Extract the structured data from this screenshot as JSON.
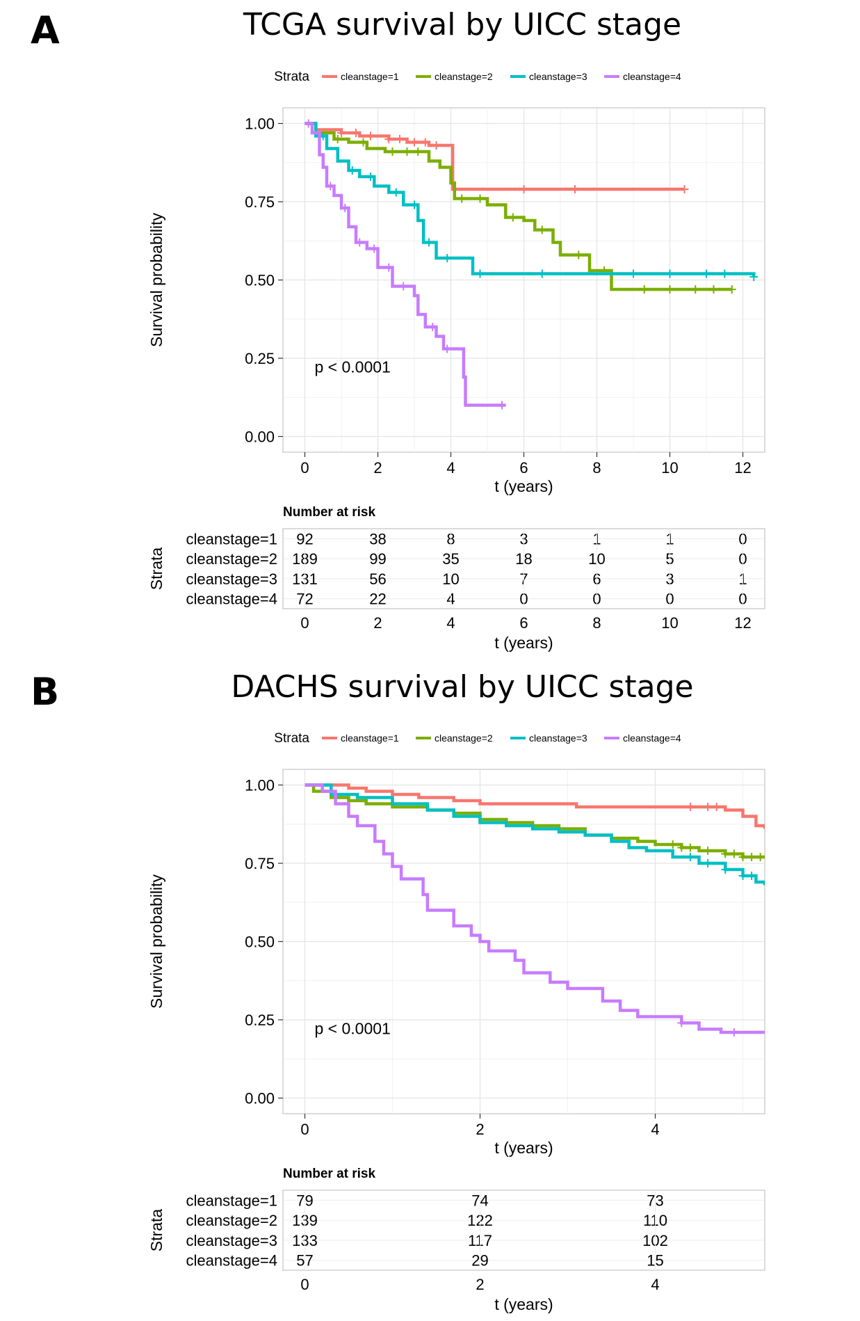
{
  "chart_data": [
    {
      "type": "line",
      "panel_label": "A",
      "title": "TCGA survival by UICC stage",
      "legend": {
        "title": "Strata",
        "placement": "top",
        "entries": [
          "cleanstage=1",
          "cleanstage=2",
          "cleanstage=3",
          "cleanstage=4"
        ]
      },
      "xlabel": "t (years)",
      "ylabel": "Survival probability",
      "xlim": [
        -0.6,
        12.6
      ],
      "ylim": [
        -0.05,
        1.05
      ],
      "xticks": [
        0,
        2,
        4,
        6,
        8,
        10,
        12
      ],
      "xtick_labels": [
        "0",
        "2",
        "4",
        "6",
        "8",
        "10",
        "12"
      ],
      "yticks": [
        0,
        0.25,
        0.5,
        0.75,
        1.0
      ],
      "ytick_labels": [
        "0.00",
        "0.25",
        "0.50",
        "0.75",
        "1.00"
      ],
      "grid": true,
      "annotation": "p < 0.0001",
      "series": [
        {
          "name": "cleanstage=1",
          "color": "#F8766D",
          "points": [
            [
              0,
              1.0
            ],
            [
              0.3,
              0.98
            ],
            [
              1.0,
              0.97
            ],
            [
              1.5,
              0.96
            ],
            [
              2.3,
              0.95
            ],
            [
              2.8,
              0.94
            ],
            [
              3.4,
              0.93
            ],
            [
              4.05,
              0.92
            ],
            [
              4.05,
              0.79
            ],
            [
              10.4,
              0.79
            ]
          ],
          "censor_times": [
            1.0,
            1.4,
            1.8,
            2.3,
            2.6,
            3.0,
            3.3,
            3.6,
            6.0,
            7.4,
            10.4
          ]
        },
        {
          "name": "cleanstage=2",
          "color": "#7CAE00",
          "points": [
            [
              0,
              1.0
            ],
            [
              0.3,
              0.97
            ],
            [
              0.8,
              0.95
            ],
            [
              1.2,
              0.94
            ],
            [
              1.7,
              0.92
            ],
            [
              2.2,
              0.91
            ],
            [
              3.2,
              0.91
            ],
            [
              3.4,
              0.88
            ],
            [
              3.7,
              0.86
            ],
            [
              4.0,
              0.81
            ],
            [
              4.1,
              0.76
            ],
            [
              5.0,
              0.74
            ],
            [
              5.5,
              0.7
            ],
            [
              6.0,
              0.69
            ],
            [
              6.3,
              0.66
            ],
            [
              6.8,
              0.62
            ],
            [
              7.0,
              0.58
            ],
            [
              7.8,
              0.53
            ],
            [
              8.4,
              0.47
            ],
            [
              11.7,
              0.47
            ]
          ],
          "censor_times": [
            0.9,
            1.6,
            2.4,
            2.8,
            3.1,
            4.3,
            4.8,
            5.7,
            6.5,
            7.5,
            8.2,
            9.3,
            10.0,
            10.7,
            11.2,
            11.7
          ]
        },
        {
          "name": "cleanstage=3",
          "color": "#00BFC4",
          "points": [
            [
              0,
              1.0
            ],
            [
              0.3,
              0.96
            ],
            [
              0.6,
              0.92
            ],
            [
              0.9,
              0.88
            ],
            [
              1.2,
              0.85
            ],
            [
              1.5,
              0.83
            ],
            [
              1.9,
              0.8
            ],
            [
              2.3,
              0.78
            ],
            [
              2.7,
              0.74
            ],
            [
              3.1,
              0.69
            ],
            [
              3.25,
              0.62
            ],
            [
              3.6,
              0.57
            ],
            [
              4.4,
              0.57
            ],
            [
              4.6,
              0.52
            ],
            [
              12.3,
              0.51
            ]
          ],
          "censor_times": [
            0.5,
            1.3,
            1.8,
            2.5,
            3.0,
            3.4,
            3.9,
            4.8,
            6.5,
            9.0,
            10.0,
            11.0,
            11.5,
            12.3
          ]
        },
        {
          "name": "cleanstage=4",
          "color": "#C77CFF",
          "points": [
            [
              0,
              1.0
            ],
            [
              0.2,
              0.97
            ],
            [
              0.4,
              0.9
            ],
            [
              0.5,
              0.86
            ],
            [
              0.6,
              0.8
            ],
            [
              0.8,
              0.77
            ],
            [
              1.0,
              0.73
            ],
            [
              1.2,
              0.67
            ],
            [
              1.4,
              0.62
            ],
            [
              1.7,
              0.6
            ],
            [
              2.0,
              0.54
            ],
            [
              2.4,
              0.48
            ],
            [
              3.0,
              0.45
            ],
            [
              3.1,
              0.39
            ],
            [
              3.3,
              0.35
            ],
            [
              3.6,
              0.32
            ],
            [
              3.8,
              0.28
            ],
            [
              4.3,
              0.28
            ],
            [
              4.35,
              0.19
            ],
            [
              4.4,
              0.1
            ],
            [
              5.5,
              0.1
            ]
          ],
          "censor_times": [
            0.1,
            0.7,
            1.1,
            1.5,
            1.9,
            2.3,
            2.7,
            3.5,
            3.9,
            5.4
          ]
        }
      ],
      "risk_table": {
        "title": "Number at risk",
        "ylabel": "Strata",
        "xlabel": "t (years)",
        "times": [
          "0",
          "2",
          "4",
          "6",
          "8",
          "10",
          "12"
        ],
        "rows": [
          {
            "label": "cleanstage=1",
            "values": [
              "92",
              "38",
              "8",
              "3",
              "1",
              "1",
              "0"
            ]
          },
          {
            "label": "cleanstage=2",
            "values": [
              "189",
              "99",
              "35",
              "18",
              "10",
              "5",
              "0"
            ]
          },
          {
            "label": "cleanstage=3",
            "values": [
              "131",
              "56",
              "10",
              "7",
              "6",
              "3",
              "1"
            ]
          },
          {
            "label": "cleanstage=4",
            "values": [
              "72",
              "22",
              "4",
              "0",
              "0",
              "0",
              "0"
            ]
          }
        ]
      }
    },
    {
      "type": "line",
      "panel_label": "B",
      "title": "DACHS survival by UICC stage",
      "legend": {
        "title": "Strata",
        "placement": "top",
        "entries": [
          "cleanstage=1",
          "cleanstage=2",
          "cleanstage=3",
          "cleanstage=4"
        ]
      },
      "xlabel": "t (years)",
      "ylabel": "Survival probability",
      "xlim": [
        -0.25,
        5.25
      ],
      "ylim": [
        -0.05,
        1.05
      ],
      "xticks": [
        0,
        2,
        4
      ],
      "xtick_labels": [
        "0",
        "2",
        "4"
      ],
      "yticks": [
        0,
        0.25,
        0.5,
        0.75,
        1.0
      ],
      "ytick_labels": [
        "0.00",
        "0.25",
        "0.50",
        "0.75",
        "1.00"
      ],
      "grid": true,
      "annotation": "p < 0.0001",
      "series": [
        {
          "name": "cleanstage=1",
          "color": "#F8766D",
          "points": [
            [
              0,
              1.0
            ],
            [
              0.5,
              0.99
            ],
            [
              0.7,
              0.98
            ],
            [
              1.0,
              0.97
            ],
            [
              1.3,
              0.96
            ],
            [
              1.7,
              0.95
            ],
            [
              2.0,
              0.94
            ],
            [
              3.1,
              0.93
            ],
            [
              4.5,
              0.93
            ],
            [
              4.8,
              0.92
            ],
            [
              5.0,
              0.9
            ],
            [
              5.15,
              0.87
            ],
            [
              5.25,
              0.86
            ]
          ],
          "censor_times": [
            4.4,
            4.6,
            4.7
          ]
        },
        {
          "name": "cleanstage=2",
          "color": "#7CAE00",
          "points": [
            [
              0,
              1.0
            ],
            [
              0.1,
              0.98
            ],
            [
              0.3,
              0.96
            ],
            [
              0.5,
              0.95
            ],
            [
              0.7,
              0.94
            ],
            [
              1.0,
              0.93
            ],
            [
              1.4,
              0.92
            ],
            [
              1.7,
              0.91
            ],
            [
              2.0,
              0.89
            ],
            [
              2.3,
              0.88
            ],
            [
              2.6,
              0.87
            ],
            [
              2.9,
              0.86
            ],
            [
              3.2,
              0.84
            ],
            [
              3.5,
              0.83
            ],
            [
              3.8,
              0.82
            ],
            [
              4.0,
              0.81
            ],
            [
              4.3,
              0.8
            ],
            [
              4.5,
              0.79
            ],
            [
              4.8,
              0.78
            ],
            [
              5.0,
              0.77
            ],
            [
              5.25,
              0.77
            ]
          ],
          "censor_times": [
            4.2,
            4.3,
            4.4,
            4.6,
            4.8,
            4.9,
            5.0,
            5.1,
            5.2
          ]
        },
        {
          "name": "cleanstage=3",
          "color": "#00BFC4",
          "points": [
            [
              0,
              1.0
            ],
            [
              0.3,
              0.97
            ],
            [
              0.6,
              0.96
            ],
            [
              1.0,
              0.94
            ],
            [
              1.4,
              0.92
            ],
            [
              1.7,
              0.9
            ],
            [
              2.0,
              0.88
            ],
            [
              2.3,
              0.87
            ],
            [
              2.6,
              0.86
            ],
            [
              2.9,
              0.85
            ],
            [
              3.2,
              0.84
            ],
            [
              3.5,
              0.82
            ],
            [
              3.7,
              0.8
            ],
            [
              3.9,
              0.79
            ],
            [
              4.2,
              0.77
            ],
            [
              4.5,
              0.75
            ],
            [
              4.8,
              0.73
            ],
            [
              5.0,
              0.71
            ],
            [
              5.15,
              0.69
            ],
            [
              5.25,
              0.68
            ]
          ],
          "censor_times": [
            4.4,
            4.6,
            4.8,
            5.0,
            5.1
          ]
        },
        {
          "name": "cleanstage=4",
          "color": "#C77CFF",
          "points": [
            [
              0,
              1.0
            ],
            [
              0.2,
              0.98
            ],
            [
              0.35,
              0.94
            ],
            [
              0.5,
              0.9
            ],
            [
              0.6,
              0.87
            ],
            [
              0.8,
              0.82
            ],
            [
              0.9,
              0.78
            ],
            [
              1.0,
              0.74
            ],
            [
              1.1,
              0.7
            ],
            [
              1.35,
              0.65
            ],
            [
              1.4,
              0.6
            ],
            [
              1.7,
              0.55
            ],
            [
              1.9,
              0.52
            ],
            [
              2.0,
              0.5
            ],
            [
              2.1,
              0.47
            ],
            [
              2.4,
              0.44
            ],
            [
              2.5,
              0.4
            ],
            [
              2.8,
              0.37
            ],
            [
              3.0,
              0.35
            ],
            [
              3.4,
              0.31
            ],
            [
              3.6,
              0.28
            ],
            [
              3.8,
              0.26
            ],
            [
              4.2,
              0.26
            ],
            [
              4.3,
              0.24
            ],
            [
              4.5,
              0.22
            ],
            [
              4.75,
              0.21
            ],
            [
              5.25,
              0.21
            ]
          ],
          "censor_times": [
            4.3,
            4.9
          ]
        }
      ],
      "risk_table": {
        "title": "Number at risk",
        "ylabel": "Strata",
        "xlabel": "t (years)",
        "times": [
          "0",
          "2",
          "4"
        ],
        "rows": [
          {
            "label": "cleanstage=1",
            "values": [
              "79",
              "74",
              "73"
            ]
          },
          {
            "label": "cleanstage=2",
            "values": [
              "139",
              "122",
              "110"
            ]
          },
          {
            "label": "cleanstage=3",
            "values": [
              "133",
              "117",
              "102"
            ]
          },
          {
            "label": "cleanstage=4",
            "values": [
              "57",
              "29",
              "15"
            ]
          }
        ]
      }
    }
  ]
}
